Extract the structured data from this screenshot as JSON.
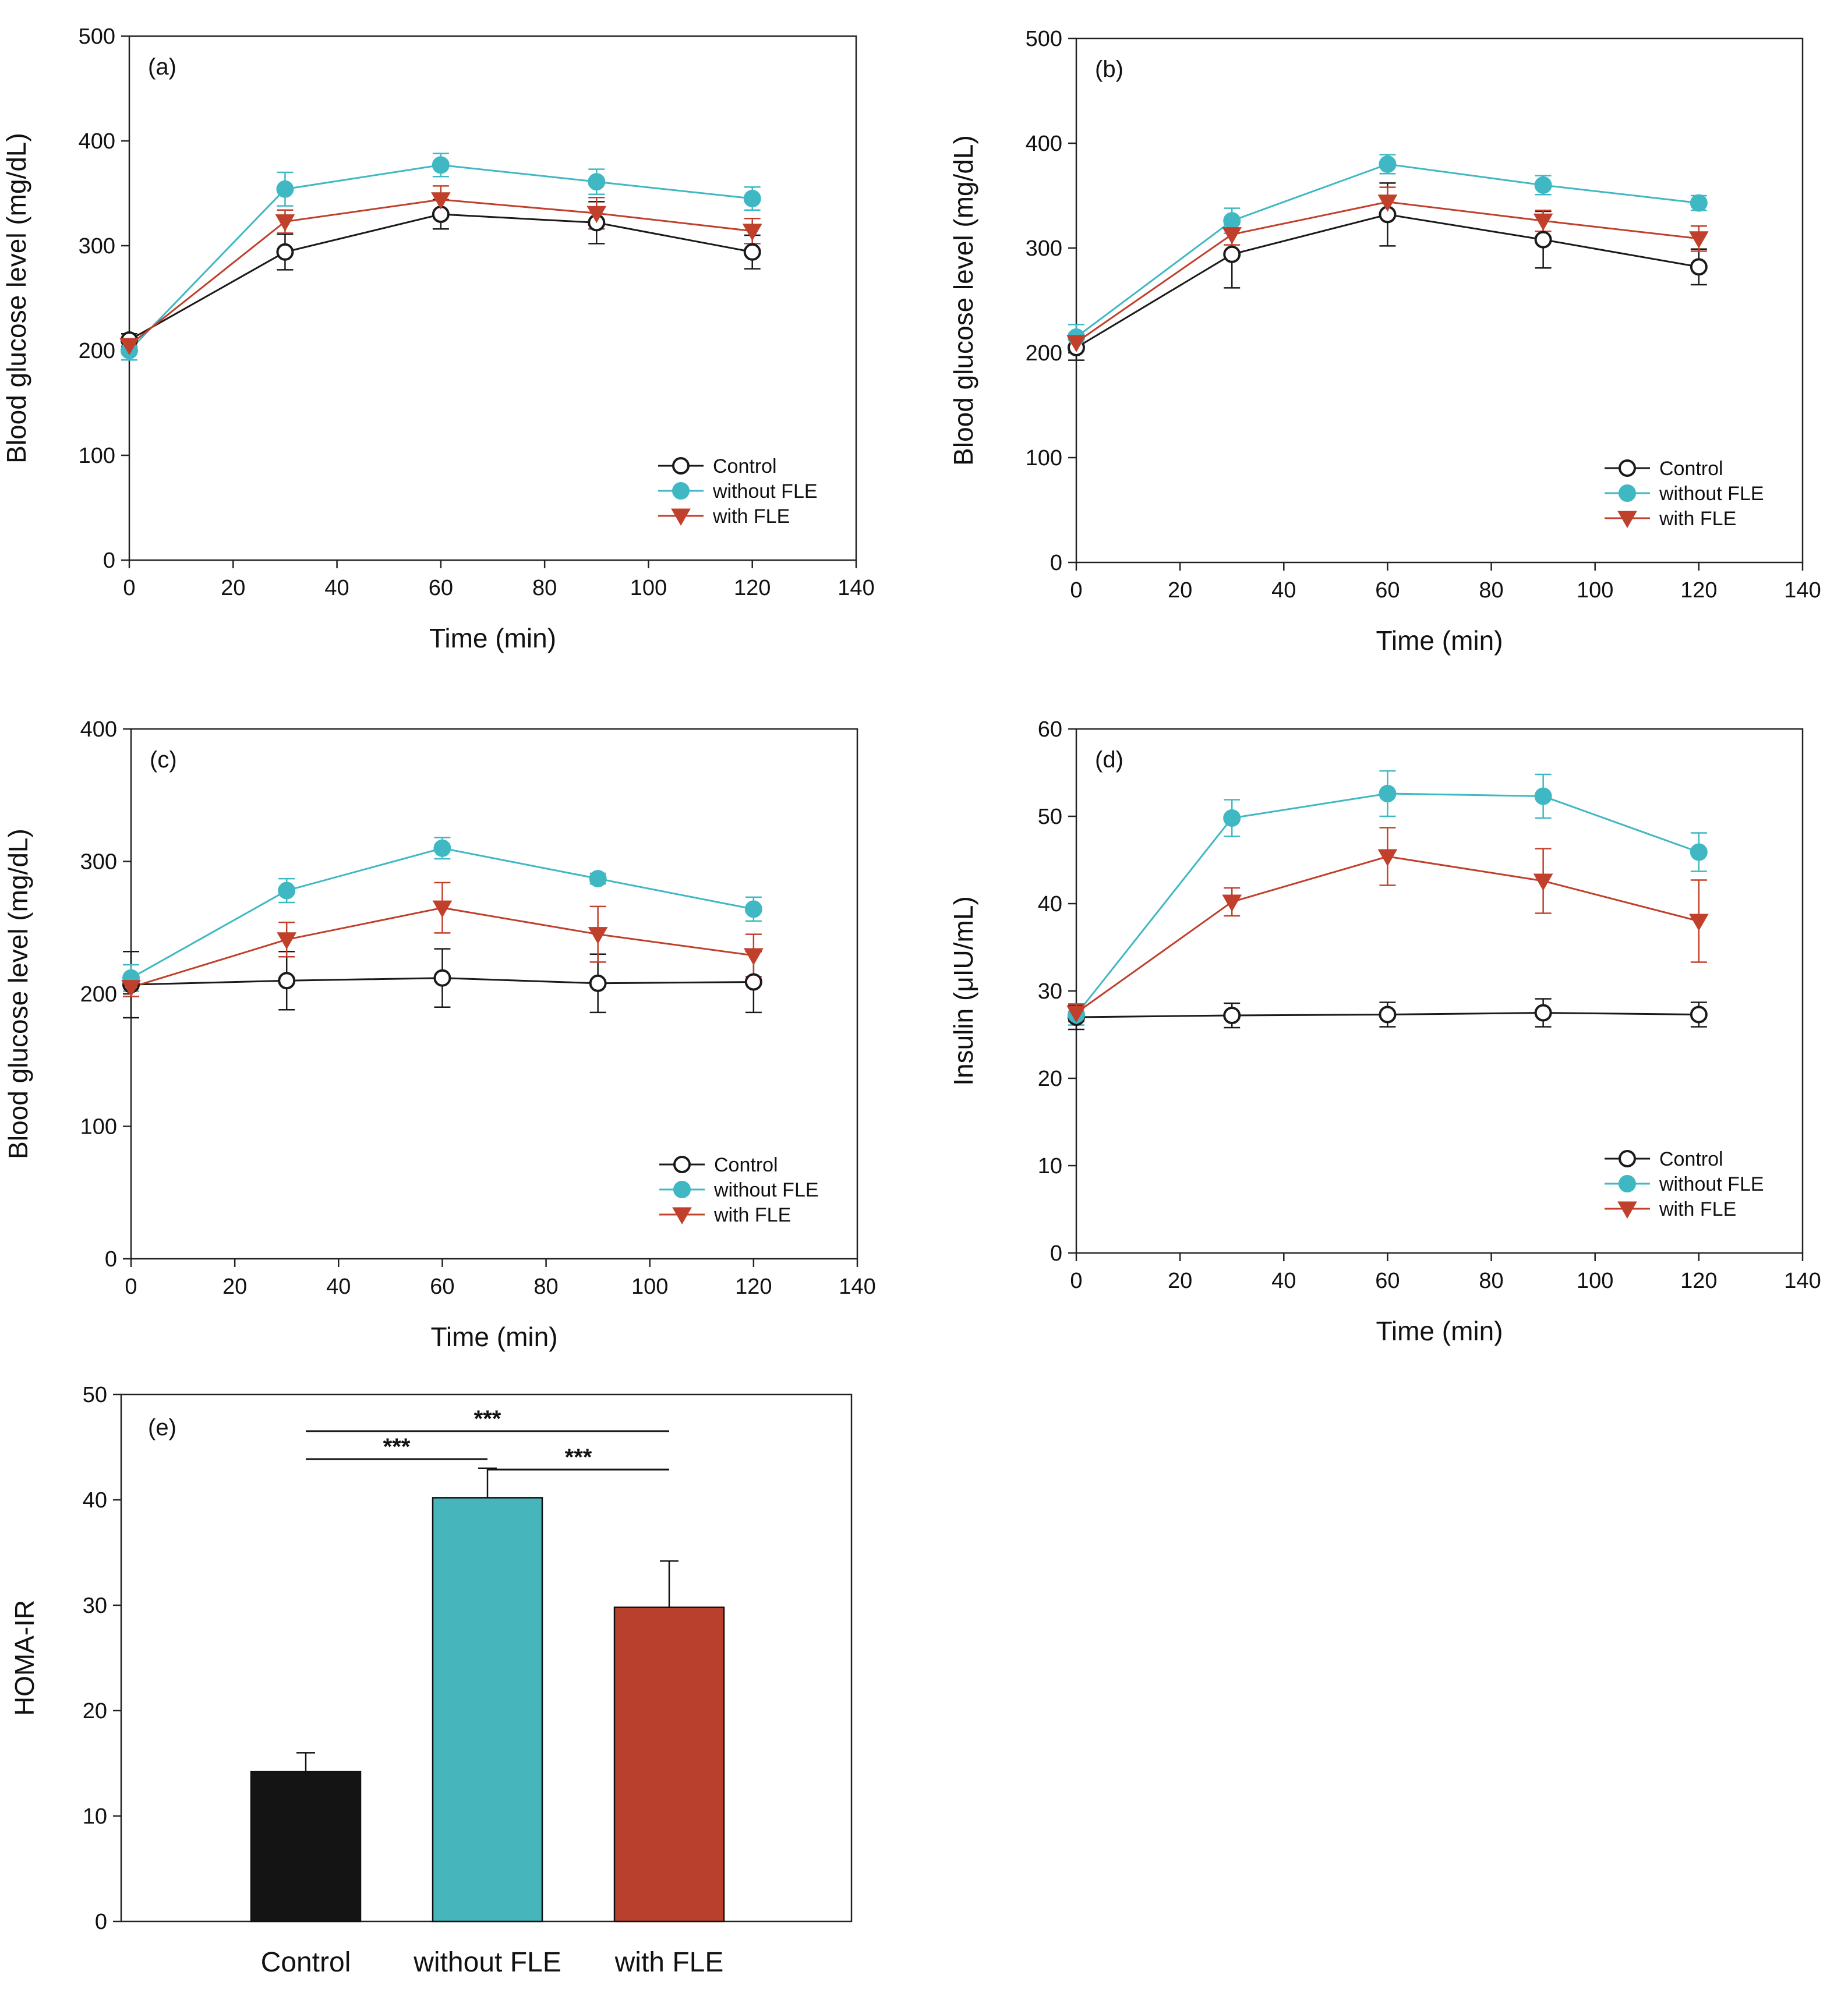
{
  "chart_data": [
    {
      "type": "line",
      "panel": "(a)",
      "xlabel": "Time (min)",
      "ylabel": "Blood glucose level (mg/dL)",
      "xlim": [
        0,
        140
      ],
      "ylim": [
        0,
        500
      ],
      "xticks": [
        "0",
        "20",
        "40",
        "60",
        "80",
        "100",
        "120",
        "140"
      ],
      "yticks": [
        "0",
        "100",
        "200",
        "300",
        "400",
        "500"
      ],
      "x": [
        0,
        30,
        60,
        90,
        120
      ],
      "legend_position": "bottom-right",
      "series": [
        {
          "name": "Control",
          "color": "#1a1a1a",
          "marker": "open-circle",
          "values": [
            210,
            294,
            330,
            322,
            294
          ],
          "errors": [
            6,
            17,
            14,
            20,
            16
          ]
        },
        {
          "name": "without FLE",
          "color": "#3fb8c4",
          "marker": "filled-circle",
          "values": [
            200,
            354,
            377,
            361,
            345
          ],
          "errors": [
            9,
            16,
            11,
            12,
            11
          ]
        },
        {
          "name": "with FLE",
          "color": "#c0402c",
          "marker": "down-triangle",
          "values": [
            205,
            323,
            344,
            331,
            314
          ],
          "errors": [
            7,
            11,
            13,
            15,
            12
          ]
        }
      ]
    },
    {
      "type": "line",
      "panel": "(b)",
      "xlabel": "Time (min)",
      "ylabel": "Blood glucose level (mg/dL)",
      "xlim": [
        0,
        140
      ],
      "ylim": [
        0,
        500
      ],
      "xticks": [
        "0",
        "20",
        "40",
        "60",
        "80",
        "100",
        "120",
        "140"
      ],
      "yticks": [
        "0",
        "100",
        "200",
        "300",
        "400",
        "500"
      ],
      "x": [
        0,
        30,
        60,
        90,
        120
      ],
      "legend_position": "bottom-right",
      "series": [
        {
          "name": "Control",
          "color": "#1a1a1a",
          "marker": "open-circle",
          "values": [
            205,
            294,
            332,
            308,
            282
          ],
          "errors": [
            12,
            32,
            30,
            27,
            17
          ]
        },
        {
          "name": "without FLE",
          "color": "#3fb8c4",
          "marker": "filled-circle",
          "values": [
            215,
            326,
            380,
            360,
            343
          ],
          "errors": [
            12,
            12,
            9,
            9,
            7
          ]
        },
        {
          "name": "with FLE",
          "color": "#c0402c",
          "marker": "down-triangle",
          "values": [
            210,
            313,
            344,
            326,
            309
          ],
          "errors": [
            8,
            10,
            14,
            10,
            12
          ]
        }
      ]
    },
    {
      "type": "line",
      "panel": "(c)",
      "xlabel": "Time (min)",
      "ylabel": "Blood glucose level (mg/dL)",
      "xlim": [
        0,
        140
      ],
      "ylim": [
        0,
        400
      ],
      "xticks": [
        "0",
        "20",
        "40",
        "60",
        "80",
        "100",
        "120",
        "140"
      ],
      "yticks": [
        "0",
        "100",
        "200",
        "300",
        "400"
      ],
      "x": [
        0,
        30,
        60,
        90,
        120
      ],
      "legend_position": "bottom-right",
      "series": [
        {
          "name": "Control",
          "color": "#1a1a1a",
          "marker": "open-circle",
          "values": [
            207,
            210,
            212,
            208,
            209
          ],
          "errors": [
            25,
            22,
            22,
            22,
            23
          ]
        },
        {
          "name": "without FLE",
          "color": "#3fb8c4",
          "marker": "filled-circle",
          "values": [
            212,
            278,
            310,
            287,
            264
          ],
          "errors": [
            10,
            9,
            8,
            4,
            9
          ]
        },
        {
          "name": "with FLE",
          "color": "#c0402c",
          "marker": "down-triangle",
          "values": [
            205,
            241,
            265,
            245,
            229
          ],
          "errors": [
            7,
            13,
            19,
            21,
            16
          ]
        }
      ]
    },
    {
      "type": "line",
      "panel": "(d)",
      "xlabel": "Time (min)",
      "ylabel": "Insulin (μIU/mL)",
      "xlim": [
        0,
        140
      ],
      "ylim": [
        0,
        60
      ],
      "xticks": [
        "0",
        "20",
        "40",
        "60",
        "80",
        "100",
        "120",
        "140"
      ],
      "yticks": [
        "0",
        "10",
        "20",
        "30",
        "40",
        "50",
        "60"
      ],
      "x": [
        0,
        30,
        60,
        90,
        120
      ],
      "legend_position": "bottom-right",
      "series": [
        {
          "name": "Control",
          "color": "#1a1a1a",
          "marker": "open-circle",
          "values": [
            27.0,
            27.2,
            27.3,
            27.5,
            27.3
          ],
          "errors": [
            1.4,
            1.4,
            1.4,
            1.6,
            1.4
          ]
        },
        {
          "name": "without FLE",
          "color": "#3fb8c4",
          "marker": "filled-circle",
          "values": [
            27.3,
            49.8,
            52.6,
            52.3,
            45.9
          ],
          "errors": [
            1.2,
            2.1,
            2.6,
            2.5,
            2.2
          ]
        },
        {
          "name": "with FLE",
          "color": "#c0402c",
          "marker": "down-triangle",
          "values": [
            27.5,
            40.2,
            45.4,
            42.6,
            38.0
          ],
          "errors": [
            1.0,
            1.6,
            3.3,
            3.7,
            4.7
          ]
        }
      ]
    },
    {
      "type": "bar",
      "panel": "(e)",
      "xlabel": "",
      "ylabel": "HOMA-IR",
      "ylim": [
        0,
        50
      ],
      "yticks": [
        "0",
        "10",
        "20",
        "30",
        "40",
        "50"
      ],
      "categories": [
        "Control",
        "without FLE",
        "with FLE"
      ],
      "values": [
        14.2,
        40.2,
        29.8
      ],
      "errors": [
        1.8,
        2.8,
        4.4
      ],
      "colors": [
        "#141414",
        "#46b6bc",
        "#b9402d"
      ],
      "significance": [
        {
          "from": "Control",
          "to": "with FLE",
          "label": "***"
        },
        {
          "from": "Control",
          "to": "without FLE",
          "label": "***"
        },
        {
          "from": "without FLE",
          "to": "with FLE",
          "label": "***"
        }
      ]
    }
  ]
}
